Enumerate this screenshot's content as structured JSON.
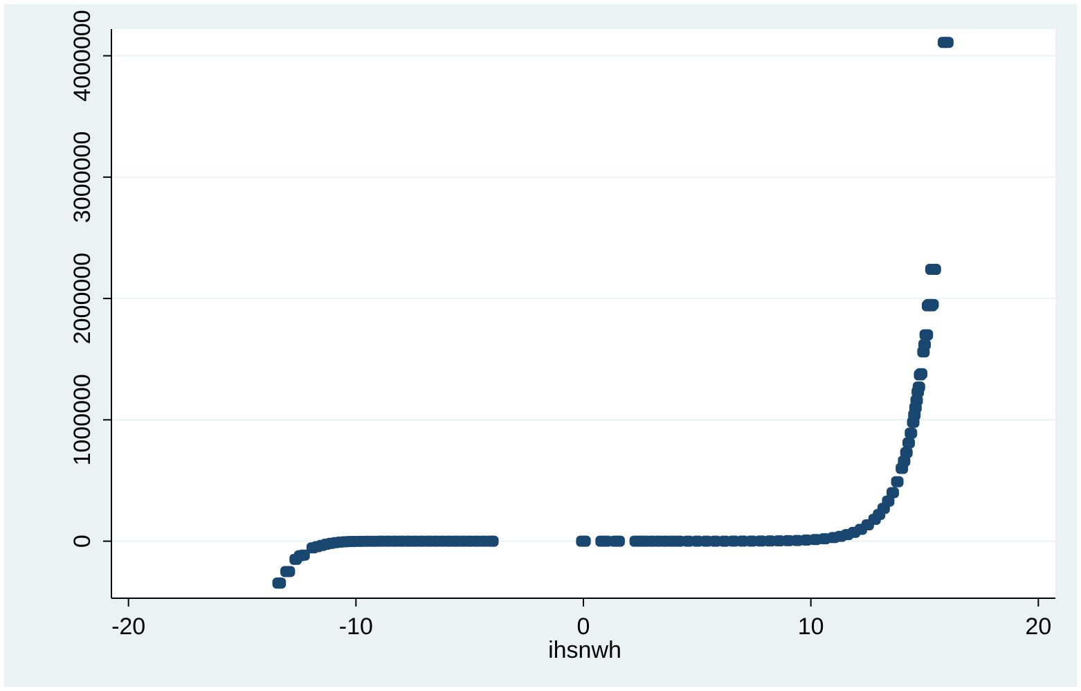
{
  "chart_data": {
    "type": "scatter",
    "title": "",
    "xlabel": "ihsnwh",
    "ylabel": "",
    "xlim": [
      -20.75,
      20.75
    ],
    "ylim": [
      -470000,
      4220000
    ],
    "xticks": [
      -20,
      -10,
      0,
      10,
      20
    ],
    "xtick_labels": [
      "-20",
      "-10",
      "0",
      "10",
      "20"
    ],
    "yticks": [
      0,
      1000000,
      2000000,
      3000000,
      4000000
    ],
    "ytick_labels": [
      "0",
      "1000000",
      "2000000",
      "3000000",
      "4000000"
    ],
    "grid": "horizontal",
    "marker_color": "#1a476f",
    "background_color": "#eaf2f3",
    "plot_background": "#ffffff",
    "series": [
      {
        "points": [
          [
            -13.4,
            -345000
          ],
          [
            -13.35,
            -345000
          ],
          [
            -13.05,
            -250000
          ],
          [
            -12.95,
            -250000
          ],
          [
            -12.65,
            -150000
          ],
          [
            -12.45,
            -120000
          ],
          [
            -12.3,
            -115000
          ],
          [
            -11.9,
            -55000
          ],
          [
            -11.7,
            -45000
          ],
          [
            -11.5,
            -35000
          ],
          [
            -11.3,
            -25000
          ],
          [
            -11.1,
            -18000
          ],
          [
            -10.9,
            -12000
          ],
          [
            -10.7,
            -8000
          ],
          [
            -10.5,
            -5000
          ],
          [
            -10.3,
            -3000
          ],
          [
            -10.1,
            -2000
          ],
          [
            -9.8,
            -1200
          ],
          [
            -9.5,
            -800
          ],
          [
            -9.2,
            -500
          ],
          [
            -8.9,
            -300
          ],
          [
            -8.6,
            -200
          ],
          [
            -8.3,
            -150
          ],
          [
            -8.0,
            -100
          ],
          [
            -7.7,
            -80
          ],
          [
            -7.4,
            -60
          ],
          [
            -7.1,
            -40
          ],
          [
            -6.8,
            -30
          ],
          [
            -6.5,
            -20
          ],
          [
            -6.2,
            -15
          ],
          [
            -5.9,
            -10
          ],
          [
            -5.6,
            -8
          ],
          [
            -5.3,
            -6
          ],
          [
            -5.0,
            -4
          ],
          [
            -4.7,
            -3
          ],
          [
            -4.4,
            -2
          ],
          [
            -4.1,
            -1
          ],
          [
            -4.0,
            -1
          ],
          [
            -0.05,
            0
          ],
          [
            0.05,
            0
          ],
          [
            0.8,
            1
          ],
          [
            1.0,
            1
          ],
          [
            1.4,
            2
          ],
          [
            1.55,
            2
          ],
          [
            2.3,
            5
          ],
          [
            2.5,
            6
          ],
          [
            2.7,
            7
          ],
          [
            3.0,
            10
          ],
          [
            3.3,
            13
          ],
          [
            3.6,
            18
          ],
          [
            3.9,
            25
          ],
          [
            4.2,
            33
          ],
          [
            4.6,
            50
          ],
          [
            5.0,
            75
          ],
          [
            5.4,
            110
          ],
          [
            5.8,
            165
          ],
          [
            6.2,
            250
          ],
          [
            6.6,
            370
          ],
          [
            7.0,
            550
          ],
          [
            7.4,
            820
          ],
          [
            7.8,
            1220
          ],
          [
            8.2,
            1820
          ],
          [
            8.6,
            2700
          ],
          [
            9.0,
            4050
          ],
          [
            9.4,
            6000
          ],
          [
            9.8,
            9000
          ],
          [
            10.2,
            13500
          ],
          [
            10.6,
            20000
          ],
          [
            11.0,
            30000
          ],
          [
            11.3,
            40000
          ],
          [
            11.6,
            54000
          ],
          [
            11.9,
            73000
          ],
          [
            12.2,
            98000
          ],
          [
            12.5,
            135000
          ],
          [
            12.8,
            180000
          ],
          [
            13.0,
            220000
          ],
          [
            13.2,
            270000
          ],
          [
            13.4,
            330000
          ],
          [
            13.6,
            400000
          ],
          [
            13.8,
            490000
          ],
          [
            14.0,
            600000
          ],
          [
            14.1,
            660000
          ],
          [
            14.2,
            730000
          ],
          [
            14.3,
            810000
          ],
          [
            14.4,
            890000
          ],
          [
            14.5,
            980000
          ],
          [
            14.55,
            1040000
          ],
          [
            14.6,
            1100000
          ],
          [
            14.65,
            1160000
          ],
          [
            14.7,
            1230000
          ],
          [
            14.75,
            1270000
          ],
          [
            14.8,
            1370000
          ],
          [
            14.85,
            1380000
          ],
          [
            14.95,
            1560000
          ],
          [
            15.0,
            1620000
          ],
          [
            15.05,
            1700000
          ],
          [
            15.1,
            1700000
          ],
          [
            15.15,
            1940000
          ],
          [
            15.2,
            1950000
          ],
          [
            15.3,
            1940000
          ],
          [
            15.35,
            1950000
          ],
          [
            15.3,
            2240000
          ],
          [
            15.45,
            2240000
          ],
          [
            15.85,
            4110000
          ],
          [
            16.0,
            4110000
          ]
        ]
      }
    ]
  }
}
